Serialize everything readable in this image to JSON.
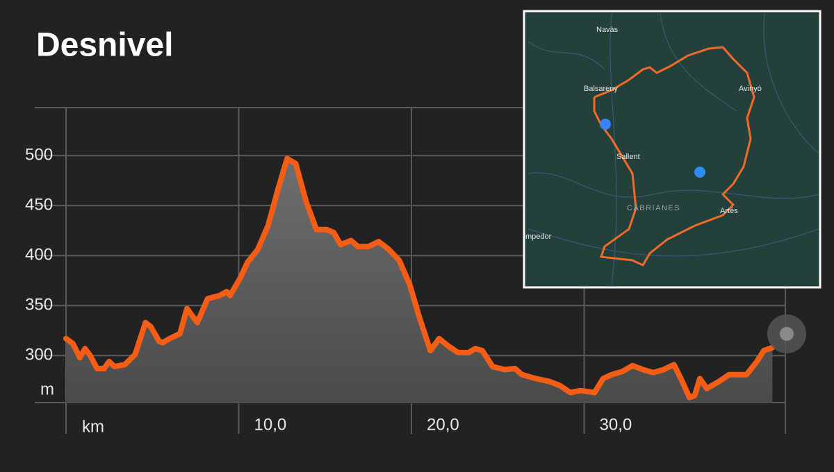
{
  "chart_data": {
    "type": "area",
    "title": "Desnivel",
    "x_unit": "km",
    "y_unit": "m",
    "color": "#f45d16",
    "x": [
      0,
      0.4,
      0.8,
      1.1,
      1.4,
      1.8,
      2.2,
      2.5,
      2.8,
      3.4,
      4.0,
      4.6,
      4.9,
      5.4,
      5.6,
      6.0,
      6.6,
      7.0,
      7.6,
      8.2,
      8.9,
      9.3,
      9.5,
      10.1,
      10.5,
      11.1,
      11.7,
      12.3,
      12.8,
      13.3,
      13.9,
      14.5,
      15.1,
      15.5,
      15.9,
      16.5,
      16.9,
      17.5,
      18.1,
      18.7,
      19.3,
      19.9,
      20.5,
      21.1,
      21.6,
      22.1,
      22.7,
      23.3,
      23.7,
      24.1,
      24.7,
      25.4,
      26.0,
      26.4,
      27.2,
      28.0,
      28.6,
      29.2,
      29.8,
      30.6,
      31.1,
      31.6,
      32.2,
      32.8,
      33.4,
      34.0,
      34.6,
      35.2,
      35.6,
      36.1,
      36.4,
      36.7,
      37.1,
      37.8,
      38.4,
      39.0,
      39.4,
      40.0,
      40.4,
      40.9
    ],
    "values": [
      317,
      312,
      298,
      307,
      300,
      287,
      287,
      294,
      289,
      291,
      301,
      333,
      329,
      314,
      313,
      317,
      322,
      347,
      333,
      357,
      360,
      364,
      360,
      378,
      393,
      406,
      430,
      468,
      497,
      492,
      454,
      426,
      426,
      423,
      411,
      415,
      409,
      409,
      414,
      406,
      395,
      371,
      336,
      305,
      317,
      310,
      303,
      303,
      307,
      305,
      289,
      286,
      287,
      281,
      277,
      274,
      270,
      263,
      265,
      263,
      277,
      281,
      284,
      290,
      286,
      283,
      286,
      291,
      277,
      258,
      260,
      277,
      267,
      274,
      281,
      281,
      281,
      294,
      305,
      308
    ],
    "xlim": [
      0,
      41.6
    ],
    "ylim": [
      253,
      548
    ],
    "xticks": [
      {
        "value": 10,
        "label": "10,0"
      },
      {
        "value": 20,
        "label": "20,0"
      },
      {
        "value": 30,
        "label": "30,0"
      }
    ],
    "yticks": [
      300,
      350,
      400,
      450,
      500
    ],
    "grid": true
  },
  "map": {
    "labels": [
      "Navàs",
      "Balsareny",
      "Avinyó",
      "Sallent",
      "CABRIANES",
      "Artés",
      "mpedor"
    ]
  }
}
